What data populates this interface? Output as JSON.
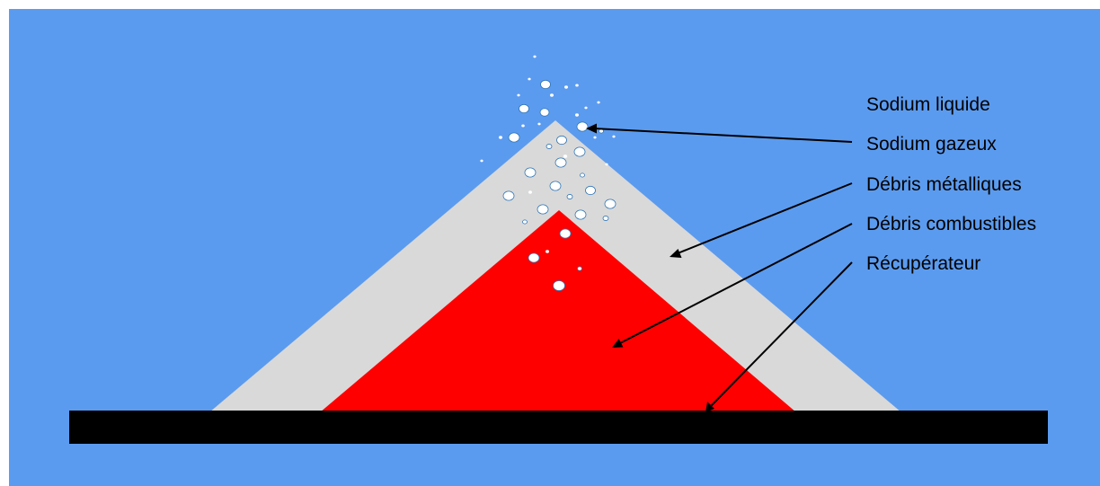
{
  "labels": {
    "sodium_liquide": "Sodium liquide",
    "sodium_gazeux": "Sodium gazeux",
    "debris_metalliques": "Débris métalliques",
    "debris_combustibles": "Débris combustibles",
    "recuperateur": "Récupérateur"
  },
  "colors": {
    "background": "#5b9bef",
    "metal_debris": "#d9d9d9",
    "fuel_debris": "#ff0000",
    "collector": "#000000",
    "bubble_fill": "#ffffff",
    "bubble_stroke": "#2e75b6"
  }
}
